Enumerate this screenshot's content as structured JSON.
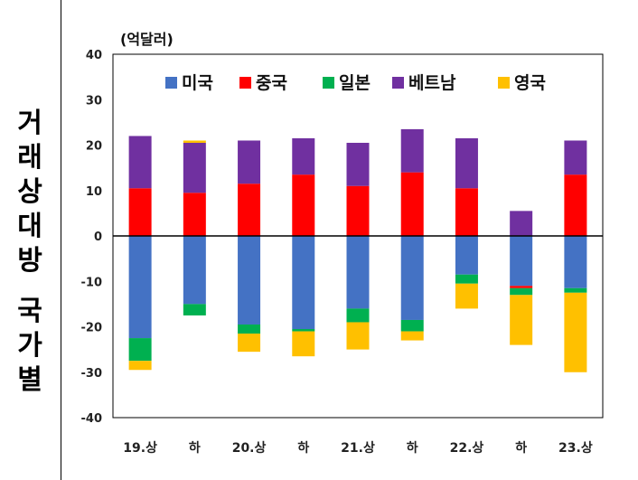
{
  "side_title": {
    "part1": [
      "거",
      "래",
      "상",
      "대",
      "방"
    ],
    "part2": [
      "국",
      "가",
      "별"
    ]
  },
  "chart_data": {
    "type": "bar",
    "stacked": true,
    "unit_label": "(억달러)",
    "categories": [
      "19.상",
      "하",
      "20.상",
      "하",
      "21.상",
      "하",
      "22.상",
      "하",
      "23.상"
    ],
    "ylim": [
      -40,
      40
    ],
    "yticks": [
      -40,
      -30,
      -20,
      -10,
      0,
      10,
      20,
      30,
      40
    ],
    "legend_position": "top",
    "series": [
      {
        "name": "미국",
        "color": "#4472C4",
        "values": [
          -22.5,
          -15,
          -19.5,
          -20.5,
          -16,
          -18.5,
          -8.5,
          -11,
          -11.5
        ]
      },
      {
        "name": "중국",
        "color": "#FF0000",
        "values": [
          10.5,
          9.5,
          11.5,
          13.5,
          11,
          14,
          10.5,
          -0.5,
          13.5
        ]
      },
      {
        "name": "일본",
        "color": "#00B050",
        "values": [
          -5,
          -2.5,
          -2,
          -0.5,
          -3,
          -2.5,
          -2,
          -1.5,
          -1
        ]
      },
      {
        "name": "베트남",
        "color": "#7030A0",
        "values": [
          11.5,
          11,
          9.5,
          8,
          9.5,
          9.5,
          11,
          5.5,
          7.5
        ]
      },
      {
        "name": "영국",
        "color": "#FFC000",
        "values": [
          -2,
          0.5,
          -4,
          -5.5,
          -6,
          -2,
          -5.5,
          -11,
          -17.5
        ]
      }
    ]
  }
}
